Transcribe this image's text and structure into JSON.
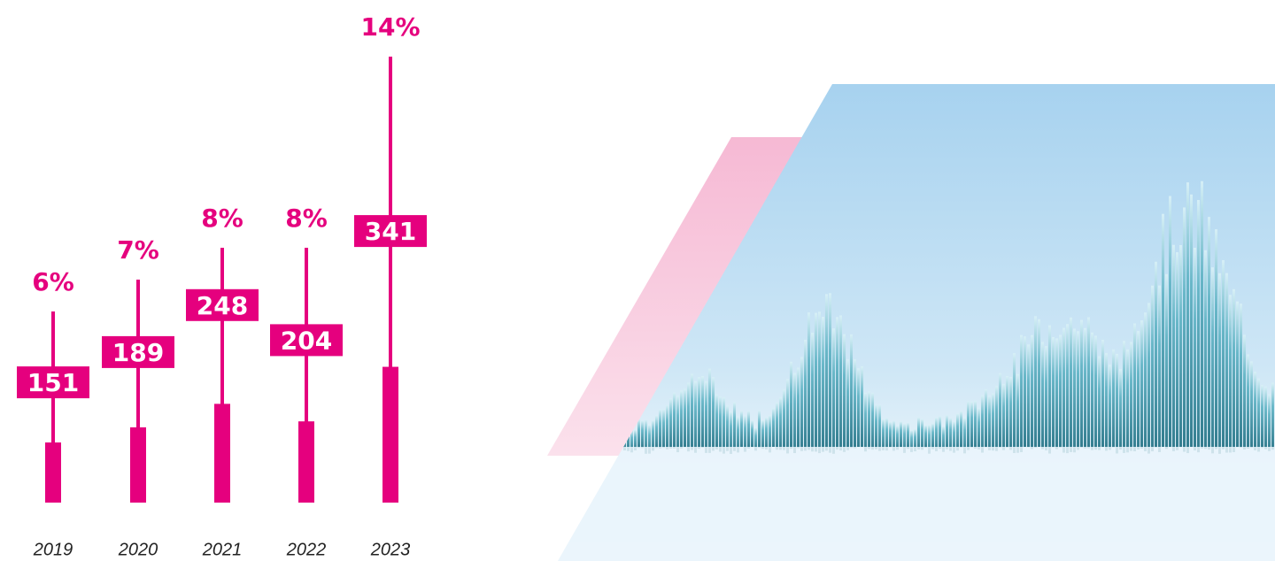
{
  "chart_data": {
    "type": "bar",
    "categories": [
      "2019",
      "2020",
      "2021",
      "2022",
      "2023"
    ],
    "series": [
      {
        "values": [
          151,
          189,
          248,
          204,
          341
        ],
        "color": "#e5007e"
      },
      {
        "values": [
          6,
          7,
          8,
          8,
          14
        ],
        "value_labels": [
          "6%",
          "7%",
          "8%",
          "8%",
          "14%"
        ],
        "color": "#e5007e"
      }
    ]
  }
}
